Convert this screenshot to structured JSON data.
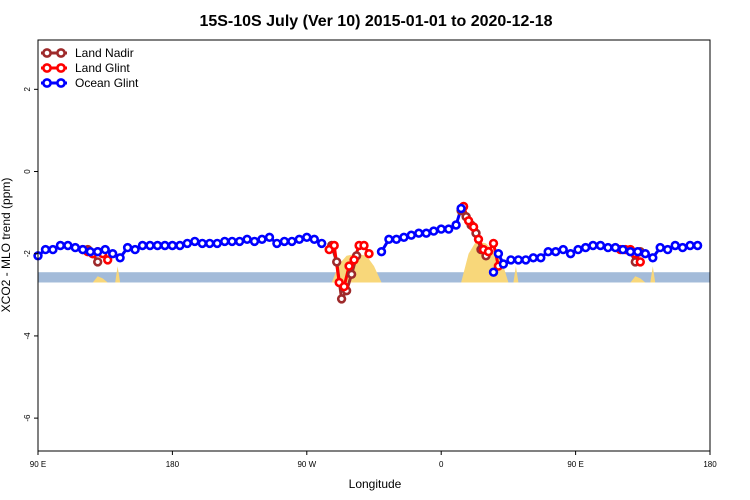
{
  "chart_data": {
    "type": "line",
    "title": "15S-10S July (Ver 10)   2015-01-01 to 2020-12-18",
    "xlabel": "Longitude",
    "ylabel": "XCO2 - MLO trend (ppm)",
    "xlim": [
      -90,
      180
    ],
    "ylim": [
      -6.8,
      3.2
    ],
    "x_ticks": [
      {
        "value": -90,
        "label": "90 E"
      },
      {
        "value": -36,
        "label": "180"
      },
      {
        "value": 18,
        "label": "90 W"
      },
      {
        "value": 72,
        "label": "0"
      },
      {
        "value": 126,
        "label": "90 E"
      },
      {
        "value": 180,
        "label": "180"
      }
    ],
    "y_ticks": [
      {
        "value": 2,
        "label": "2"
      },
      {
        "value": 0,
        "label": "0"
      },
      {
        "value": -2,
        "label": "-2"
      },
      {
        "value": -4,
        "label": "-4"
      },
      {
        "value": -6,
        "label": "-6"
      }
    ],
    "legend_position": "top-left",
    "land_band": {
      "y_top": -2.45,
      "y_bottom": -2.7,
      "color": "#a3bbd9"
    },
    "land_fill_color": "#f8d77a",
    "land_fill_segments": [
      [
        [
          -68,
          -2.7
        ],
        [
          -66,
          -2.55
        ],
        [
          -64,
          -2.6
        ],
        [
          -62,
          -2.7
        ]
      ],
      [
        [
          -59,
          -2.7
        ],
        [
          -58,
          -2.3
        ],
        [
          -57,
          -2.7
        ]
      ],
      [
        [
          28,
          -2.7
        ],
        [
          31,
          -2.25
        ],
        [
          34,
          -2.05
        ],
        [
          38,
          -2.0
        ],
        [
          42,
          -2.05
        ],
        [
          45,
          -2.3
        ],
        [
          48,
          -2.7
        ]
      ],
      [
        [
          80,
          -2.7
        ],
        [
          83,
          -2.0
        ],
        [
          86,
          -1.7
        ],
        [
          90,
          -1.75
        ],
        [
          94,
          -2.0
        ],
        [
          97,
          -2.3
        ],
        [
          99,
          -2.7
        ]
      ],
      [
        [
          101,
          -2.7
        ],
        [
          102,
          -2.3
        ],
        [
          103,
          -2.7
        ]
      ],
      [
        [
          148,
          -2.7
        ],
        [
          150,
          -2.55
        ],
        [
          152,
          -2.6
        ],
        [
          154,
          -2.7
        ]
      ],
      [
        [
          156,
          -2.7
        ],
        [
          157,
          -2.3
        ],
        [
          158,
          -2.7
        ]
      ]
    ],
    "series": [
      {
        "name": "Land Nadir",
        "color": "#9e2a2b",
        "segments": [
          [
            [
              -70,
              -1.9
            ],
            [
              -68,
              -2.0
            ],
            [
              -66,
              -2.2
            ]
          ],
          [
            [
              28,
              -1.8
            ],
            [
              30,
              -2.2
            ],
            [
              32,
              -3.1
            ],
            [
              34,
              -2.9
            ],
            [
              36,
              -2.5
            ],
            [
              38,
              -2.05
            ]
          ],
          [
            [
              80,
              -0.95
            ],
            [
              82,
              -1.1
            ],
            [
              84,
              -1.3
            ],
            [
              86,
              -1.5
            ],
            [
              88,
              -1.9
            ],
            [
              90,
              -2.05
            ]
          ],
          [
            [
              148,
              -1.95
            ],
            [
              150,
              -2.2
            ],
            [
              152,
              -1.95
            ]
          ]
        ]
      },
      {
        "name": "Land Glint",
        "color": "#ff0000",
        "segments": [
          [
            [
              -72,
              -1.9
            ],
            [
              -70,
              -1.95
            ],
            [
              -68,
              -2.0
            ],
            [
              -66,
              -1.95
            ],
            [
              -64,
              -2.0
            ],
            [
              -62,
              -2.15
            ]
          ],
          [
            [
              27,
              -1.9
            ],
            [
              29,
              -1.8
            ],
            [
              31,
              -2.7
            ],
            [
              33,
              -2.8
            ],
            [
              35,
              -2.3
            ],
            [
              37,
              -2.15
            ],
            [
              39,
              -1.8
            ],
            [
              41,
              -1.8
            ],
            [
              43,
              -2.0
            ]
          ],
          [
            [
              81,
              -0.85
            ],
            [
              83,
              -1.2
            ],
            [
              85,
              -1.35
            ],
            [
              87,
              -1.65
            ],
            [
              89,
              -1.9
            ],
            [
              91,
              -1.95
            ],
            [
              93,
              -1.75
            ],
            [
              95,
              -2.3
            ]
          ],
          [
            [
              144,
              -1.9
            ],
            [
              146,
              -1.9
            ],
            [
              148,
              -1.9
            ],
            [
              150,
              -2.0
            ],
            [
              152,
              -2.2
            ]
          ]
        ]
      },
      {
        "name": "Ocean Glint",
        "color": "#0000ff",
        "segments": [
          [
            [
              -90,
              -2.05
            ],
            [
              -87,
              -1.9
            ],
            [
              -84,
              -1.9
            ],
            [
              -81,
              -1.8
            ],
            [
              -78,
              -1.8
            ],
            [
              -75,
              -1.85
            ],
            [
              -72,
              -1.9
            ],
            [
              -69,
              -1.95
            ],
            [
              -66,
              -1.95
            ],
            [
              -63,
              -1.9
            ],
            [
              -60,
              -2.0
            ],
            [
              -57,
              -2.1
            ],
            [
              -54,
              -1.85
            ],
            [
              -51,
              -1.9
            ],
            [
              -48,
              -1.8
            ],
            [
              -45,
              -1.8
            ],
            [
              -42,
              -1.8
            ],
            [
              -39,
              -1.8
            ],
            [
              -36,
              -1.8
            ],
            [
              -33,
              -1.8
            ],
            [
              -30,
              -1.75
            ],
            [
              -27,
              -1.7
            ],
            [
              -24,
              -1.75
            ],
            [
              -21,
              -1.75
            ],
            [
              -18,
              -1.75
            ],
            [
              -15,
              -1.7
            ],
            [
              -12,
              -1.7
            ],
            [
              -9,
              -1.7
            ],
            [
              -6,
              -1.65
            ],
            [
              -3,
              -1.7
            ],
            [
              0,
              -1.65
            ],
            [
              3,
              -1.6
            ],
            [
              6,
              -1.75
            ],
            [
              9,
              -1.7
            ],
            [
              12,
              -1.7
            ],
            [
              15,
              -1.65
            ],
            [
              18,
              -1.6
            ],
            [
              21,
              -1.65
            ],
            [
              24,
              -1.75
            ]
          ],
          [
            [
              48,
              -1.95
            ],
            [
              51,
              -1.65
            ],
            [
              54,
              -1.65
            ],
            [
              57,
              -1.6
            ],
            [
              60,
              -1.55
            ],
            [
              63,
              -1.5
            ],
            [
              66,
              -1.5
            ],
            [
              69,
              -1.45
            ],
            [
              72,
              -1.4
            ],
            [
              75,
              -1.4
            ],
            [
              78,
              -1.3
            ],
            [
              80,
              -0.9
            ]
          ],
          [
            [
              93,
              -2.45
            ]
          ],
          [
            [
              95,
              -2.0
            ],
            [
              97,
              -2.25
            ],
            [
              100,
              -2.15
            ],
            [
              103,
              -2.15
            ],
            [
              106,
              -2.15
            ],
            [
              109,
              -2.1
            ],
            [
              112,
              -2.1
            ],
            [
              115,
              -1.95
            ],
            [
              118,
              -1.95
            ],
            [
              121,
              -1.9
            ],
            [
              124,
              -2.0
            ],
            [
              127,
              -1.9
            ],
            [
              130,
              -1.85
            ],
            [
              133,
              -1.8
            ],
            [
              136,
              -1.8
            ],
            [
              139,
              -1.85
            ],
            [
              142,
              -1.85
            ],
            [
              145,
              -1.9
            ],
            [
              148,
              -1.95
            ],
            [
              151,
              -1.95
            ],
            [
              154,
              -2.0
            ],
            [
              157,
              -2.1
            ],
            [
              160,
              -1.85
            ],
            [
              163,
              -1.9
            ],
            [
              166,
              -1.8
            ],
            [
              169,
              -1.85
            ],
            [
              172,
              -1.8
            ],
            [
              175,
              -1.8
            ]
          ]
        ]
      }
    ]
  }
}
